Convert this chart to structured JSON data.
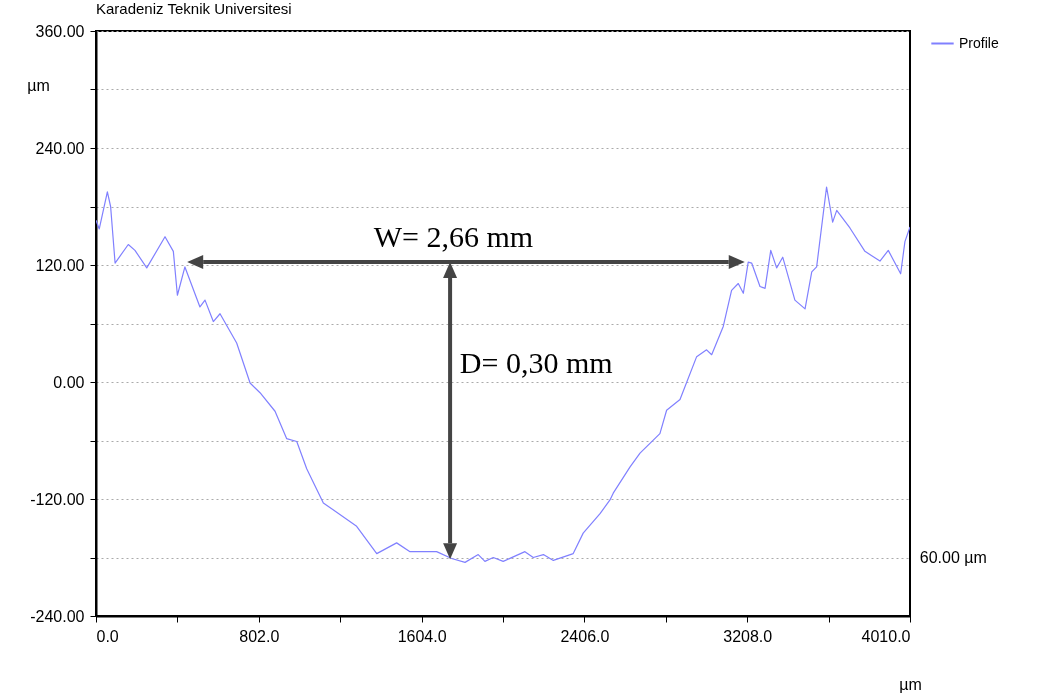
{
  "chart_data": {
    "type": "line",
    "title": "Karadeniz Teknik Universitesi",
    "xlabel": "µm",
    "ylabel": "µm",
    "x": [
      0,
      16,
      56,
      72,
      94,
      159,
      192,
      250,
      340,
      381,
      401,
      438,
      512,
      537,
      578,
      611,
      693,
      759,
      808,
      882,
      939,
      989,
      1038,
      1120,
      1284,
      1383,
      1481,
      1547,
      1678,
      1752,
      1818,
      1883,
      1916,
      1957,
      2006,
      2113,
      2154,
      2204,
      2253,
      2351,
      2400,
      2483,
      2532,
      2548,
      2631,
      2680,
      2778,
      2811,
      2877,
      2959,
      3008,
      3033,
      3090,
      3131,
      3164,
      3189,
      3213,
      3230,
      3271,
      3296,
      3324,
      3353,
      3383,
      3443,
      3493,
      3526,
      3550,
      3599,
      3629,
      3649,
      3714,
      3788,
      3862,
      3903,
      3964,
      3985,
      4010
    ],
    "series": [
      {
        "name": "Profile",
        "color": "#8080ff",
        "values": [
          166,
          157,
          195,
          180,
          122,
          141,
          135,
          117,
          149,
          134,
          89,
          118,
          77,
          84,
          62,
          70,
          40,
          -1,
          -11,
          -30,
          -58,
          -61,
          -89,
          -124,
          -148,
          -176,
          -165,
          -174,
          -174,
          -181,
          -185,
          -177,
          -184,
          -180,
          -184,
          -174,
          -180,
          -177,
          -183,
          -176,
          -155,
          -135,
          -121,
          -114,
          -87,
          -73,
          -53,
          -29,
          -18,
          26,
          33,
          28,
          57,
          94,
          101,
          91,
          123,
          122,
          98,
          96,
          135,
          117,
          128,
          84,
          75,
          113,
          118,
          200,
          164,
          176,
          158,
          134,
          124,
          135,
          111,
          144,
          159
        ]
      }
    ],
    "xlim": [
      0,
      4010
    ],
    "ylim": [
      -240,
      360
    ],
    "xticks": [
      {
        "value": 0,
        "label": "0.0"
      },
      {
        "value": 401,
        "label": null
      },
      {
        "value": 802,
        "label": "802.0"
      },
      {
        "value": 1203,
        "label": null
      },
      {
        "value": 1604,
        "label": "1604.0"
      },
      {
        "value": 2005,
        "label": null
      },
      {
        "value": 2406,
        "label": "2406.0"
      },
      {
        "value": 2807,
        "label": null
      },
      {
        "value": 3208,
        "label": "3208.0"
      },
      {
        "value": 3609,
        "label": null
      },
      {
        "value": 4010,
        "label": "4010.0"
      }
    ],
    "yticks": [
      {
        "value": -240,
        "label": "-240.00"
      },
      {
        "value": -180,
        "label": null
      },
      {
        "value": -120,
        "label": "-120.00"
      },
      {
        "value": -60,
        "label": null
      },
      {
        "value": 0,
        "label": "0.00"
      },
      {
        "value": 60,
        "label": null
      },
      {
        "value": 120,
        "label": "120.00"
      },
      {
        "value": 180,
        "label": null
      },
      {
        "value": 240,
        "label": "240.00"
      },
      {
        "value": 300,
        "label": null
      },
      {
        "value": 360,
        "label": "360.00"
      }
    ],
    "grid": "y",
    "legend": "top right",
    "line_style": "solid",
    "marker": "none",
    "annotations": [
      "W= 2,66 mm",
      "D= 0,30 mm",
      "60.00 µm"
    ]
  }
}
